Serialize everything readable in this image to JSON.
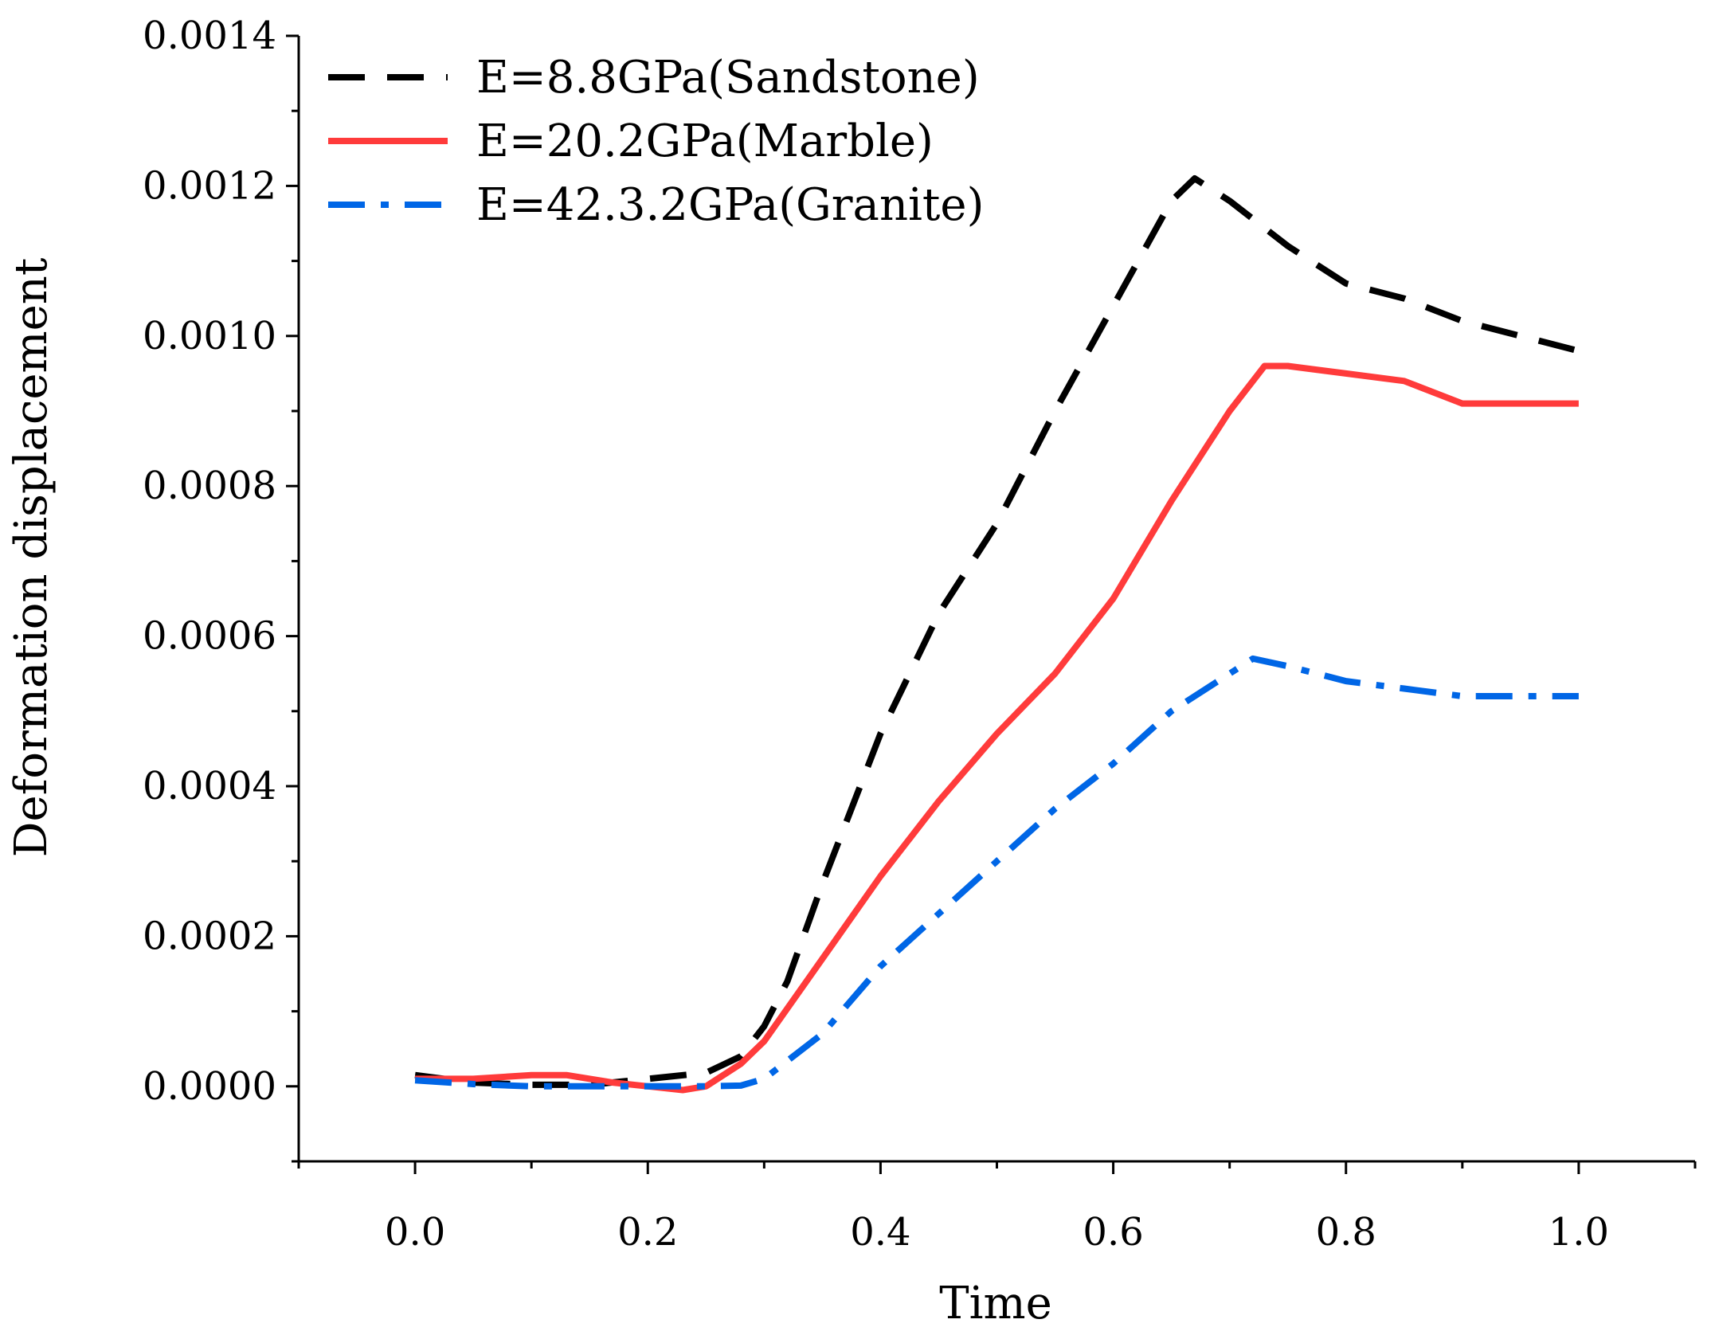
{
  "chart_data": {
    "type": "line",
    "title": "",
    "xlabel": "Time",
    "ylabel": "Deformation displacement",
    "xlim": [
      -0.1,
      1.1
    ],
    "ylim": [
      -0.0001,
      0.0014
    ],
    "x_ticks": [
      0.0,
      0.2,
      0.4,
      0.6,
      0.8,
      1.0
    ],
    "x_tick_labels": [
      "0.0",
      "0.2",
      "0.4",
      "0.6",
      "0.8",
      "1.0"
    ],
    "y_ticks": [
      0.0,
      0.0002,
      0.0004,
      0.0006,
      0.0008,
      0.001,
      0.0012,
      0.0014
    ],
    "y_tick_labels": [
      "0.0000",
      "0.0002",
      "0.0004",
      "0.0006",
      "0.0008",
      "0.0010",
      "0.0012",
      "0.0014"
    ],
    "grid": false,
    "legend_position": "top-left",
    "series": [
      {
        "name": "E=8.8GPa(Sandstone)",
        "color": "#000000",
        "style": "dashed",
        "x": [
          0.0,
          0.05,
          0.1,
          0.15,
          0.2,
          0.25,
          0.28,
          0.3,
          0.32,
          0.35,
          0.4,
          0.45,
          0.5,
          0.55,
          0.6,
          0.65,
          0.67,
          0.7,
          0.75,
          0.8,
          0.85,
          0.9,
          0.95,
          1.0
        ],
        "values": [
          1.5e-05,
          5e-06,
          2e-06,
          2e-06,
          1e-05,
          1.8e-05,
          4e-05,
          8e-05,
          0.00014,
          0.00027,
          0.00047,
          0.00063,
          0.00075,
          0.0009,
          0.00104,
          0.00118,
          0.00121,
          0.00118,
          0.00112,
          0.00107,
          0.00105,
          0.00102,
          0.001,
          0.00098
        ]
      },
      {
        "name": "E=20.2GPa(Marble)",
        "color": "#ff3b3b",
        "style": "solid",
        "x": [
          0.0,
          0.05,
          0.1,
          0.13,
          0.17,
          0.2,
          0.23,
          0.25,
          0.28,
          0.3,
          0.35,
          0.4,
          0.45,
          0.5,
          0.55,
          0.6,
          0.65,
          0.7,
          0.73,
          0.75,
          0.8,
          0.85,
          0.9,
          0.95,
          1.0
        ],
        "values": [
          1e-05,
          1e-05,
          1.5e-05,
          1.5e-05,
          5e-06,
          0.0,
          -5e-06,
          0.0,
          3e-05,
          6e-05,
          0.00017,
          0.00028,
          0.00038,
          0.00047,
          0.00055,
          0.00065,
          0.00078,
          0.0009,
          0.00096,
          0.00096,
          0.00095,
          0.00094,
          0.00091,
          0.00091,
          0.00091
        ]
      },
      {
        "name": "E=42.3.2GPa(Granite)",
        "color": "#0066e6",
        "style": "dash-dot",
        "x": [
          0.0,
          0.05,
          0.1,
          0.15,
          0.2,
          0.25,
          0.28,
          0.3,
          0.35,
          0.4,
          0.45,
          0.5,
          0.55,
          0.6,
          0.65,
          0.7,
          0.72,
          0.75,
          0.8,
          0.85,
          0.9,
          0.95,
          1.0
        ],
        "values": [
          8e-06,
          3e-06,
          0.0,
          0.0,
          0.0,
          0.0,
          1e-06,
          1e-05,
          7e-05,
          0.00016,
          0.00023,
          0.0003,
          0.00037,
          0.00043,
          0.0005,
          0.00055,
          0.00057,
          0.00056,
          0.00054,
          0.00053,
          0.00052,
          0.00052,
          0.00052
        ]
      }
    ]
  }
}
